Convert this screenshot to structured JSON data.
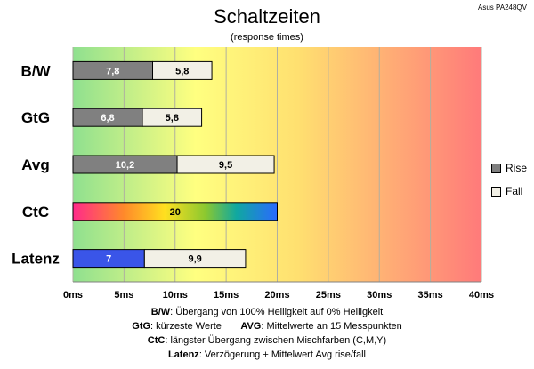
{
  "header": {
    "title": "Schaltzeiten",
    "subtitle": "(response times)",
    "model": "Asus PA248QV"
  },
  "legend": {
    "rise": "Rise",
    "fall": "Fall"
  },
  "notes": {
    "bw_key": "B/W",
    "bw_text": ":  Übergang von 100% Helligkeit auf 0% Helligkeit",
    "gtg_key": "GtG",
    "gtg_text": ": kürzeste  Werte",
    "avg_key": "AVG",
    "avg_text": ": Mittelwerte  an 15 Messpunkten",
    "ctc_key": "CtC",
    "ctc_text": ": längster Übergang  zwischen Mischfarben (C,M,Y)",
    "latenz_key": "Latenz",
    "latenz_text": ": Verzögerung  + Mittelwert  Avg rise/fall"
  },
  "colors": {
    "rise": "#808080",
    "fall": "#f2f0e6",
    "latenz": "#3a55e8",
    "bg_left": "#8fe08f",
    "bg_mid": "#ffff80",
    "bg_right": "#ff7a7a"
  },
  "chart_data": {
    "type": "bar",
    "orientation": "horizontal",
    "stacked": true,
    "categories": [
      "B/W",
      "GtG",
      "Avg",
      "CtC",
      "Latenz"
    ],
    "series": [
      {
        "name": "Rise",
        "values": [
          7.8,
          6.8,
          10.2,
          20,
          7
        ]
      },
      {
        "name": "Fall",
        "values": [
          5.8,
          5.8,
          9.5,
          null,
          9.9
        ]
      }
    ],
    "xlim": [
      0,
      40
    ],
    "xticks": [
      0,
      5,
      10,
      15,
      20,
      25,
      30,
      35,
      40
    ],
    "xtick_labels": [
      "0ms",
      "5ms",
      "10ms",
      "15ms",
      "20ms",
      "25ms",
      "30ms",
      "35ms",
      "40ms"
    ],
    "grid": true,
    "legend_position": "right"
  }
}
